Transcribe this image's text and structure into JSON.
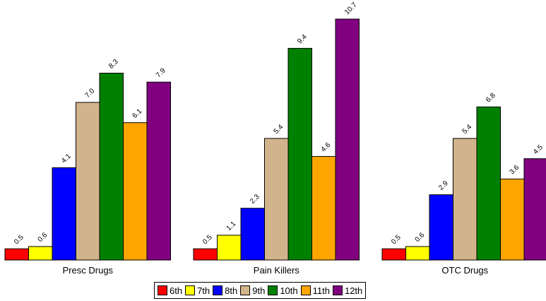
{
  "chart_data": {
    "type": "bar",
    "categories": [
      "Presc Drugs",
      "Pain Killers",
      "OTC Drugs"
    ],
    "series": [
      {
        "name": "6th",
        "color": "#ff0000",
        "values": [
          0.5,
          0.5,
          0.5
        ]
      },
      {
        "name": "7th",
        "color": "#ffff00",
        "values": [
          0.6,
          1.1,
          0.6
        ]
      },
      {
        "name": "8th",
        "color": "#0000ff",
        "values": [
          4.1,
          2.3,
          2.9
        ]
      },
      {
        "name": "9th",
        "color": "#d2b48c",
        "values": [
          7.0,
          5.4,
          5.4
        ]
      },
      {
        "name": "10th",
        "color": "#008000",
        "values": [
          8.3,
          9.4,
          6.8
        ]
      },
      {
        "name": "11th",
        "color": "#ffa500",
        "values": [
          6.1,
          4.6,
          3.6
        ]
      },
      {
        "name": "12th",
        "color": "#800080",
        "values": [
          7.9,
          10.7,
          4.5
        ]
      }
    ],
    "ylim": [
      0,
      10.7
    ],
    "grid": false,
    "legend_position": "bottom"
  }
}
